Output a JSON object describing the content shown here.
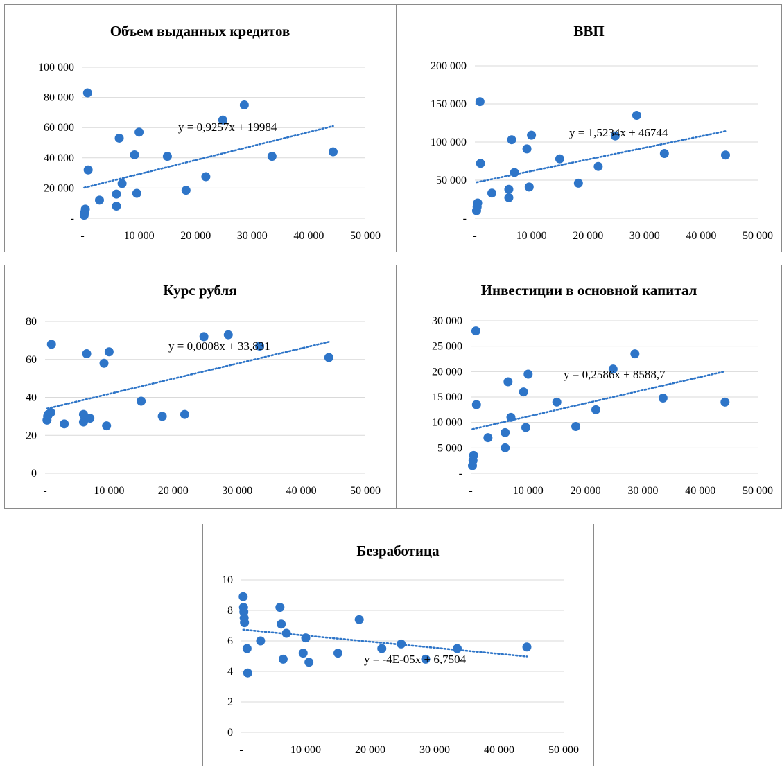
{
  "colors": {
    "marker": "#2e75c8",
    "trendline": "#2e75c8",
    "grid": "#d9d9d9",
    "text": "#000000",
    "border": "#8a8a8a"
  },
  "chart_data": [
    {
      "type": "scatter",
      "title": "Объем выданных кредитов",
      "xlabel": "",
      "ylabel": "",
      "xlim": [
        0,
        50000
      ],
      "ylim": [
        0,
        100000
      ],
      "x_ticks": [
        0,
        10000,
        20000,
        30000,
        40000,
        50000
      ],
      "x_tick_labels": [
        "-",
        "10 000",
        "20 000",
        "30 000",
        "40 000",
        "50 000"
      ],
      "y_ticks": [
        0,
        20000,
        40000,
        60000,
        80000,
        100000
      ],
      "y_tick_labels": [
        "-",
        "20 000",
        "40 000",
        "60 000",
        "80 000",
        "100 000"
      ],
      "grid": "horizontal",
      "trendline": {
        "label": "y = 0,9257x + 19984",
        "slope": 0.9257,
        "intercept": 19984
      },
      "points": [
        {
          "x": 300,
          "y": 2000
        },
        {
          "x": 400,
          "y": 4000
        },
        {
          "x": 500,
          "y": 6000
        },
        {
          "x": 900,
          "y": 83000
        },
        {
          "x": 1000,
          "y": 32000
        },
        {
          "x": 3000,
          "y": 12000
        },
        {
          "x": 6000,
          "y": 8000
        },
        {
          "x": 6000,
          "y": 16000
        },
        {
          "x": 6500,
          "y": 53000
        },
        {
          "x": 7000,
          "y": 23000
        },
        {
          "x": 9200,
          "y": 42000
        },
        {
          "x": 9600,
          "y": 16500
        },
        {
          "x": 10000,
          "y": 57000
        },
        {
          "x": 15000,
          "y": 41000
        },
        {
          "x": 18300,
          "y": 18500
        },
        {
          "x": 21800,
          "y": 27500
        },
        {
          "x": 24800,
          "y": 65000
        },
        {
          "x": 28600,
          "y": 75000
        },
        {
          "x": 33500,
          "y": 41000
        },
        {
          "x": 44300,
          "y": 44000
        }
      ]
    },
    {
      "type": "scatter",
      "title": "ВВП",
      "xlabel": "",
      "ylabel": "",
      "xlim": [
        0,
        50000
      ],
      "ylim": [
        0,
        200000
      ],
      "x_ticks": [
        0,
        10000,
        20000,
        30000,
        40000,
        50000
      ],
      "x_tick_labels": [
        "-",
        "10 000",
        "20 000",
        "30 000",
        "40 000",
        "50 000"
      ],
      "y_ticks": [
        0,
        50000,
        100000,
        150000,
        200000
      ],
      "y_tick_labels": [
        "-",
        "50 000",
        "100 000",
        "150 000",
        "200 000"
      ],
      "grid": "horizontal",
      "trendline": {
        "label": "y = 1,5234x + 46744",
        "slope": 1.5234,
        "intercept": 46744
      },
      "points": [
        {
          "x": 300,
          "y": 10000
        },
        {
          "x": 400,
          "y": 15000
        },
        {
          "x": 500,
          "y": 20000
        },
        {
          "x": 900,
          "y": 153000
        },
        {
          "x": 1000,
          "y": 72000
        },
        {
          "x": 3000,
          "y": 33000
        },
        {
          "x": 6000,
          "y": 27000
        },
        {
          "x": 6000,
          "y": 38000
        },
        {
          "x": 6500,
          "y": 103000
        },
        {
          "x": 7000,
          "y": 60000
        },
        {
          "x": 9200,
          "y": 91000
        },
        {
          "x": 9600,
          "y": 41000
        },
        {
          "x": 10000,
          "y": 109000
        },
        {
          "x": 15000,
          "y": 78000
        },
        {
          "x": 18300,
          "y": 46000
        },
        {
          "x": 21800,
          "y": 68000
        },
        {
          "x": 24800,
          "y": 108000
        },
        {
          "x": 28600,
          "y": 135000
        },
        {
          "x": 33500,
          "y": 85000
        },
        {
          "x": 44300,
          "y": 83000
        }
      ]
    },
    {
      "type": "scatter",
      "title": "Курс рубля",
      "xlabel": "",
      "ylabel": "",
      "xlim": [
        0,
        50000
      ],
      "ylim": [
        0,
        80
      ],
      "x_ticks": [
        0,
        10000,
        20000,
        30000,
        40000,
        50000
      ],
      "x_tick_labels": [
        "-",
        "10 000",
        "20 000",
        "30 000",
        "40 000",
        "50 000"
      ],
      "y_ticks": [
        0,
        20,
        40,
        60,
        80
      ],
      "y_tick_labels": [
        "0",
        "20",
        "40",
        "60",
        "80"
      ],
      "grid": "horizontal",
      "trendline": {
        "label": "y = 0,0008x + 33,831",
        "slope": 0.0008,
        "intercept": 33.831
      },
      "points": [
        {
          "x": 300,
          "y": 28
        },
        {
          "x": 400,
          "y": 30
        },
        {
          "x": 500,
          "y": 31
        },
        {
          "x": 900,
          "y": 32
        },
        {
          "x": 1000,
          "y": 68
        },
        {
          "x": 3000,
          "y": 26
        },
        {
          "x": 6000,
          "y": 27
        },
        {
          "x": 6000,
          "y": 31
        },
        {
          "x": 6500,
          "y": 63
        },
        {
          "x": 7000,
          "y": 29
        },
        {
          "x": 9200,
          "y": 58
        },
        {
          "x": 9600,
          "y": 25
        },
        {
          "x": 10000,
          "y": 64
        },
        {
          "x": 15000,
          "y": 38
        },
        {
          "x": 18300,
          "y": 30
        },
        {
          "x": 21800,
          "y": 31
        },
        {
          "x": 24800,
          "y": 72
        },
        {
          "x": 28600,
          "y": 73
        },
        {
          "x": 33500,
          "y": 67
        },
        {
          "x": 44300,
          "y": 61
        }
      ]
    },
    {
      "type": "scatter",
      "title": "Инвестиции в основной капитал",
      "xlabel": "",
      "ylabel": "",
      "xlim": [
        0,
        50000
      ],
      "ylim": [
        0,
        30000
      ],
      "x_ticks": [
        0,
        10000,
        20000,
        30000,
        40000,
        50000
      ],
      "x_tick_labels": [
        "-",
        "10 000",
        "20 000",
        "30 000",
        "40 000",
        "50 000"
      ],
      "y_ticks": [
        0,
        5000,
        10000,
        15000,
        20000,
        25000,
        30000
      ],
      "y_tick_labels": [
        "-",
        "5 000",
        "10 000",
        "15 000",
        "20 000",
        "25 000",
        "30 000"
      ],
      "grid": "horizontal",
      "trendline": {
        "label": "y = 0,2586x + 8588,7",
        "slope": 0.2586,
        "intercept": 8588.7
      },
      "points": [
        {
          "x": 300,
          "y": 1500
        },
        {
          "x": 400,
          "y": 2500
        },
        {
          "x": 500,
          "y": 3500
        },
        {
          "x": 900,
          "y": 28000
        },
        {
          "x": 1000,
          "y": 13500
        },
        {
          "x": 3000,
          "y": 7000
        },
        {
          "x": 6000,
          "y": 8000
        },
        {
          "x": 6000,
          "y": 5000
        },
        {
          "x": 6500,
          "y": 18000
        },
        {
          "x": 7000,
          "y": 11000
        },
        {
          "x": 9200,
          "y": 16000
        },
        {
          "x": 9600,
          "y": 9000
        },
        {
          "x": 10000,
          "y": 19500
        },
        {
          "x": 15000,
          "y": 14000
        },
        {
          "x": 18300,
          "y": 9200
        },
        {
          "x": 21800,
          "y": 12500
        },
        {
          "x": 24800,
          "y": 20500
        },
        {
          "x": 28600,
          "y": 23500
        },
        {
          "x": 33500,
          "y": 14800
        },
        {
          "x": 44300,
          "y": 14000
        }
      ]
    },
    {
      "type": "scatter",
      "title": "Безработица",
      "xlabel": "",
      "ylabel": "",
      "xlim": [
        0,
        50000
      ],
      "ylim": [
        0,
        10
      ],
      "x_ticks": [
        0,
        10000,
        20000,
        30000,
        40000,
        50000
      ],
      "x_tick_labels": [
        "-",
        "10 000",
        "20 000",
        "30 000",
        "40 000",
        "50 000"
      ],
      "y_ticks": [
        0,
        2,
        4,
        6,
        8,
        10
      ],
      "y_tick_labels": [
        "0",
        "2",
        "4",
        "6",
        "8",
        "10"
      ],
      "grid": "horizontal",
      "trendline": {
        "label": "y = -4E-05x + 6,7504",
        "slope": -4e-05,
        "intercept": 6.7504
      },
      "points": [
        {
          "x": 300,
          "y": 8.9
        },
        {
          "x": 350,
          "y": 8.2
        },
        {
          "x": 400,
          "y": 7.9
        },
        {
          "x": 450,
          "y": 7.5
        },
        {
          "x": 500,
          "y": 7.2
        },
        {
          "x": 900,
          "y": 5.5
        },
        {
          "x": 1000,
          "y": 3.9
        },
        {
          "x": 3000,
          "y": 6.0
        },
        {
          "x": 6000,
          "y": 8.2
        },
        {
          "x": 6200,
          "y": 7.1
        },
        {
          "x": 6500,
          "y": 4.8
        },
        {
          "x": 7000,
          "y": 6.5
        },
        {
          "x": 9600,
          "y": 5.2
        },
        {
          "x": 10000,
          "y": 6.2
        },
        {
          "x": 10500,
          "y": 4.6
        },
        {
          "x": 15000,
          "y": 5.2
        },
        {
          "x": 18300,
          "y": 7.4
        },
        {
          "x": 21800,
          "y": 5.5
        },
        {
          "x": 24800,
          "y": 5.8
        },
        {
          "x": 28600,
          "y": 4.8
        },
        {
          "x": 33500,
          "y": 5.5
        },
        {
          "x": 44300,
          "y": 5.6
        }
      ]
    }
  ]
}
